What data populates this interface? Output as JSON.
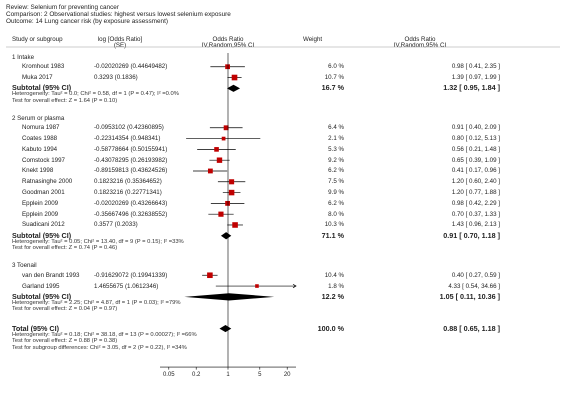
{
  "header": {
    "review": "Review:  Selenium for preventing cancer",
    "comparison": "Comparison:  2 Observational studies: highest versus lowest selenium exposure",
    "outcome": "Outcome:  14 Lung cancer risk (by exposure assessment)"
  },
  "columns": {
    "study": "Study or subgroup",
    "logor_1": "log [Odds Ratio]",
    "logor_2": "(SE)",
    "or_left_1": "Odds Ratio",
    "or_left_2": "IV,Random,95% CI",
    "weight": "Weight",
    "or_right_1": "Odds Ratio",
    "or_right_2": "IV,Random,95% CI"
  },
  "colors": {
    "square": "#c00000",
    "diamond": "#000000",
    "line": "#000000"
  },
  "chart_data": {
    "type": "forest",
    "xscale": "log",
    "xticks": [
      "0.05",
      "0.2",
      "1",
      "5",
      "20"
    ],
    "xlim": [
      0.05,
      20
    ],
    "null_value": 1,
    "subgroups": [
      {
        "title": "1 Intake",
        "studies": [
          {
            "name": "Kromhout 1983",
            "logor": "-0.02020269 (0.44649482)",
            "weight": "6.0 %",
            "or_text": "0.98 [ 0.41, 2.35 ]",
            "or": 0.98,
            "lo": 0.41,
            "hi": 2.35,
            "w": 6.0
          },
          {
            "name": "Muka 2017",
            "logor": "0.3293 (0.1836)",
            "weight": "10.7 %",
            "or_text": "1.39 [ 0.97, 1.99 ]",
            "or": 1.39,
            "lo": 0.97,
            "hi": 1.99,
            "w": 10.7
          }
        ],
        "subtotal": {
          "label": "Subtotal (95% CI)",
          "weight": "16.7 %",
          "or_text": "1.32 [ 0.95, 1.84 ]",
          "or": 1.32,
          "lo": 0.95,
          "hi": 1.84
        },
        "heterogeneity": "Heterogeneity: Tau² = 0.0; Chi² = 0.58, df = 1 (P = 0.47); I² =0.0%",
        "overall": "Test for overall effect: Z = 1.64 (P = 0.10)"
      },
      {
        "title": "2 Serum or plasma",
        "studies": [
          {
            "name": "Nomura 1987",
            "logor": "-0.0953102 (0.42360895)",
            "weight": "6.4 %",
            "or_text": "0.91 [ 0.40, 2.09 ]",
            "or": 0.91,
            "lo": 0.4,
            "hi": 2.09,
            "w": 6.4
          },
          {
            "name": "Coates 1988",
            "logor": "-0.22314354 (0.948341)",
            "weight": "2.1 %",
            "or_text": "0.80 [ 0.12, 5.13 ]",
            "or": 0.8,
            "lo": 0.12,
            "hi": 5.13,
            "w": 2.1
          },
          {
            "name": "Kabuto 1994",
            "logor": "-0.58778664 (0.50155941)",
            "weight": "5.3 %",
            "or_text": "0.56 [ 0.21, 1.48 ]",
            "or": 0.56,
            "lo": 0.21,
            "hi": 1.48,
            "w": 5.3
          },
          {
            "name": "Comstock 1997",
            "logor": "-0.43078295 (0.26193982)",
            "weight": "9.2 %",
            "or_text": "0.65 [ 0.39, 1.09 ]",
            "or": 0.65,
            "lo": 0.39,
            "hi": 1.09,
            "w": 9.2
          },
          {
            "name": "Knekt 1998",
            "logor": "-0.89159813 (0.43624526)",
            "weight": "6.2 %",
            "or_text": "0.41 [ 0.17, 0.96 ]",
            "or": 0.41,
            "lo": 0.17,
            "hi": 0.96,
            "w": 6.2
          },
          {
            "name": "Ratnasinghe 2000",
            "logor": "0.1823216 (0.35364652)",
            "weight": "7.5 %",
            "or_text": "1.20 [ 0.60, 2.40 ]",
            "or": 1.2,
            "lo": 0.6,
            "hi": 2.4,
            "w": 7.5
          },
          {
            "name": "Goodman 2001",
            "logor": "0.1823216 (0.22771341)",
            "weight": "9.9 %",
            "or_text": "1.20 [ 0.77, 1.88 ]",
            "or": 1.2,
            "lo": 0.77,
            "hi": 1.88,
            "w": 9.9
          },
          {
            "name": "Epplein 2009",
            "logor": "-0.02020269 (0.43266643)",
            "weight": "6.2 %",
            "or_text": "0.98 [ 0.42, 2.29 ]",
            "or": 0.98,
            "lo": 0.42,
            "hi": 2.29,
            "w": 6.2
          },
          {
            "name": "Epplein 2009",
            "logor": "-0.35667496 (0.32638552)",
            "weight": "8.0 %",
            "or_text": "0.70 [ 0.37, 1.33 ]",
            "or": 0.7,
            "lo": 0.37,
            "hi": 1.33,
            "w": 8.0
          },
          {
            "name": "Suadicani 2012",
            "logor": "0.3577 (0.2033)",
            "weight": "10.3 %",
            "or_text": "1.43 [ 0.96, 2.13 ]",
            "or": 1.43,
            "lo": 0.96,
            "hi": 2.13,
            "w": 10.3
          }
        ],
        "subtotal": {
          "label": "Subtotal (95% CI)",
          "weight": "71.1 %",
          "or_text": "0.91 [ 0.70, 1.18 ]",
          "or": 0.91,
          "lo": 0.7,
          "hi": 1.18
        },
        "heterogeneity": "Heterogeneity: Tau² = 0.05; Chi² = 13.40, df = 9 (P = 0.15); I² =33%",
        "overall": "Test for overall effect: Z = 0.74 (P = 0.46)"
      },
      {
        "title": "3 Toenail",
        "studies": [
          {
            "name": "van den Brandt 1993",
            "logor": "-0.91629072 (0.19941339)",
            "weight": "10.4 %",
            "or_text": "0.40 [ 0.27, 0.59 ]",
            "or": 0.4,
            "lo": 0.27,
            "hi": 0.59,
            "w": 10.4
          },
          {
            "name": "Garland 1995",
            "logor": "1.4655675 (1.0612346)",
            "weight": "1.8 %",
            "or_text": "4.33 [ 0.54, 34.66 ]",
            "or": 4.33,
            "lo": 0.54,
            "hi": 34.66,
            "w": 1.8
          }
        ],
        "subtotal": {
          "label": "Subtotal (95% CI)",
          "weight": "12.2 %",
          "or_text": "1.05 [ 0.11, 10.36 ]",
          "or": 1.05,
          "lo": 0.11,
          "hi": 10.36
        },
        "heterogeneity": "Heterogeneity: Tau² = 2.25; Chi² = 4.87, df = 1 (P = 0.03); I² =79%",
        "overall": "Test for overall effect: Z = 0.04 (P = 0.97)"
      }
    ],
    "total": {
      "label": "Total (95% CI)",
      "weight": "100.0 %",
      "or_text": "0.88 [ 0.65, 1.18 ]",
      "or": 0.88,
      "lo": 0.65,
      "hi": 1.18,
      "heterogeneity": "Heterogeneity: Tau² = 0.18; Chi² = 38.18, df = 13 (P = 0.00027); I² =66%",
      "overall": "Test for overall effect: Z = 0.88 (P = 0.38)",
      "subgroup_diff": "Test for subgroup differences: Chi² = 3.05, df = 2 (P = 0.22), I² =34%"
    }
  }
}
